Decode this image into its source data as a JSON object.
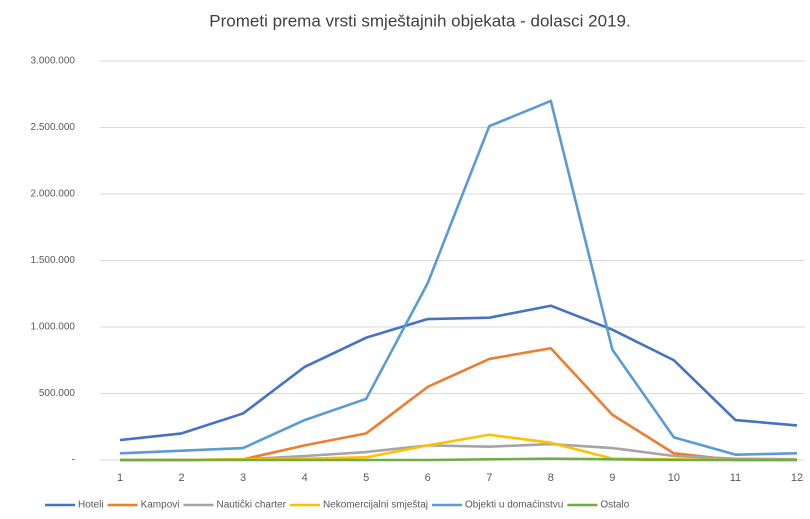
{
  "chart_data": {
    "type": "line",
    "title": "Prometi prema vrsti smještajnih objekata - dolasci  2019.",
    "categories": [
      "1",
      "2",
      "3",
      "4",
      "5",
      "6",
      "7",
      "8",
      "9",
      "10",
      "11",
      "12"
    ],
    "series": [
      {
        "name": "Hoteli",
        "color": "#4472c4",
        "values": [
          150000,
          200000,
          350000,
          700000,
          920000,
          1060000,
          1070000,
          1160000,
          980000,
          750000,
          300000,
          260000
        ]
      },
      {
        "name": "Kampovi",
        "color": "#ed7d31",
        "values": [
          0,
          0,
          5000,
          110000,
          200000,
          550000,
          760000,
          840000,
          340000,
          50000,
          0,
          0
        ]
      },
      {
        "name": "Nautički charter",
        "color": "#a5a5a5",
        "values": [
          0,
          0,
          5000,
          30000,
          60000,
          110000,
          100000,
          120000,
          90000,
          30000,
          10000,
          5000
        ]
      },
      {
        "name": "Nekomercijalni smještaj",
        "color": "#ffc000",
        "values": [
          0,
          0,
          5000,
          10000,
          20000,
          110000,
          190000,
          130000,
          10000,
          5000,
          0,
          0
        ]
      },
      {
        "name": "Objekti u domaćinstvu",
        "color": "#5b9bd5",
        "values": [
          50000,
          70000,
          90000,
          300000,
          460000,
          1330000,
          2510000,
          2700000,
          830000,
          170000,
          40000,
          50000
        ]
      },
      {
        "name": "Ostalo",
        "color": "#70ad47",
        "values": [
          0,
          0,
          0,
          0,
          0,
          0,
          5000,
          10000,
          5000,
          0,
          0,
          0
        ]
      }
    ],
    "ylim": [
      0,
      3000000
    ],
    "yticks": [
      {
        "value": 0,
        "label": "-"
      },
      {
        "value": 500000,
        "label": "500.000"
      },
      {
        "value": 1000000,
        "label": "1.000.000"
      },
      {
        "value": 1500000,
        "label": "1.500.000"
      },
      {
        "value": 2000000,
        "label": "2.000.000"
      },
      {
        "value": 2500000,
        "label": "2.500.000"
      },
      {
        "value": 3000000,
        "label": "3.000.000"
      }
    ],
    "grid": true,
    "legend": "bottom"
  }
}
